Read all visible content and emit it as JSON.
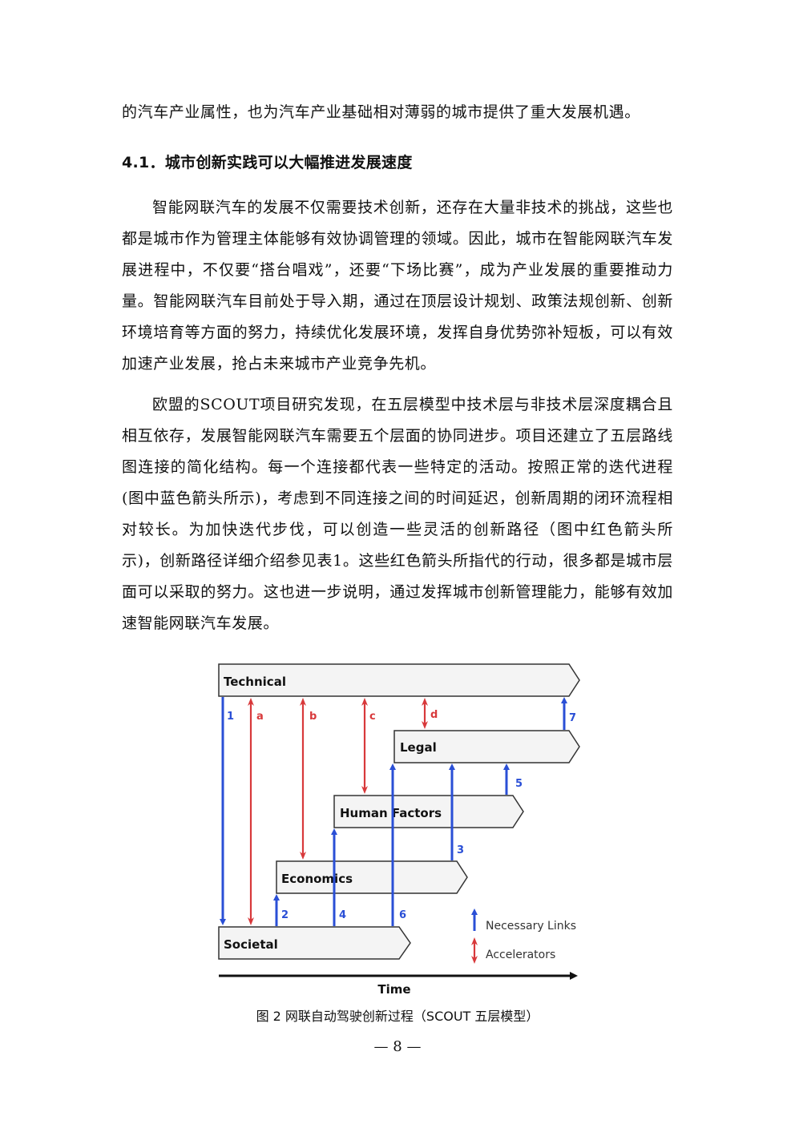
{
  "paragraphs": [
    "的汽车产业属性，也为汽车产业基础相对薄弱的城市提供了重大发展机遇。",
    "智能网联汽车的发展不仅需要技术创新，还存在大量非技术的挑战，这些也都是城市作为管理主体能够有效协调管理的领域。因此，城市在智能网联汽车发展进程中，不仅要“搭台唱戏”，还要“下场比赛”，成为产业发展的重要推动力量。智能网联汽车目前处于导入期，通过在顶层设计规划、政策法规创新、创新环境培育等方面的努力，持续优化发展环境，发挥自身优势弥补短板，可以有效加速产业发展，抢占未来城市产业竞争先机。",
    "欧盟的SCOUT项目研究发现，在五层模型中技术层与非技术层深度耦合且相互依存，发展智能网联汽车需要五个层面的协同进步。项目还建立了五层路线图连接的简化结构。每一个连接都代表一些特定的活动。按照正常的迭代进程(图中蓝色箭头所示)，考虑到不同连接之间的时间延迟，创新周期的闭环流程相对较长。为加快迭代步伐，可以创造一些灵活的创新路径（图中红色箭头所示)，创新路径详细介绍参见表1。这些红色箭头所指代的行动，很多都是城市层面可以采取的努力。这也进一步说明，通过发挥城市创新管理能力，能够有效加速智能网联汽车发展。"
  ],
  "heading": "4.1．城市创新实践可以大幅推进发展速度",
  "figure": {
    "layers": [
      "Technical",
      "Legal",
      "Human Factors",
      "Economics",
      "Societal"
    ],
    "blue_link_labels": [
      "1",
      "2",
      "3",
      "4",
      "5",
      "6",
      "7"
    ],
    "red_link_labels": [
      "a",
      "b",
      "c",
      "d"
    ],
    "legend": {
      "necessary": "Necessary Links",
      "accelerators": "Accelerators"
    },
    "time_label": "Time",
    "colors": {
      "blue": "#2a4fd6",
      "red": "#d8393b",
      "layer_fill": "#f4f4f4",
      "layer_stroke": "#333333"
    }
  },
  "caption": "图 2 网联自动驾驶创新过程（SCOUT 五层模型）",
  "page_number": "— 8 —"
}
